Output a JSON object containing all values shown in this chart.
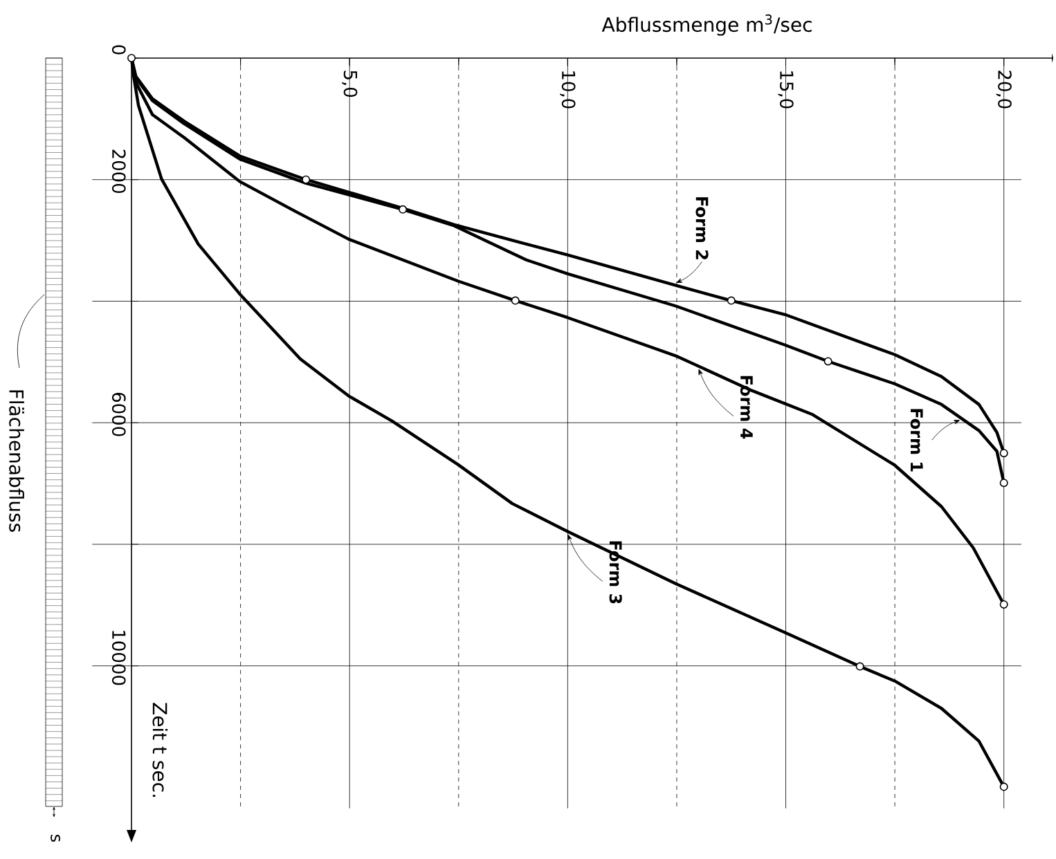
{
  "chart_data": {
    "type": "line",
    "xlabel": "Abflussmenge  m$^{3}$/sec",
    "ylabel": "Zeit t sec.",
    "xlim": [
      0,
      21.1
    ],
    "ylim": [
      12700,
      0
    ],
    "xticks": [
      {
        "value": 2.5,
        "label": null
      },
      {
        "value": 5,
        "label": "5,0"
      },
      {
        "value": 7.5,
        "label": null
      },
      {
        "value": 10,
        "label": "10,0"
      },
      {
        "value": 12.5,
        "label": null
      },
      {
        "value": 15,
        "label": "15,0"
      },
      {
        "value": 17.5,
        "label": null
      },
      {
        "value": 20,
        "label": "20,0"
      }
    ],
    "yticks": [
      0,
      2000,
      {
        "value": 4000,
        "label": null
      },
      6000,
      {
        "value": 8000,
        "label": null
      },
      10000
    ],
    "grid": true,
    "series": [
      {
        "name": "Form 1",
        "color": "#000000",
        "x": [
          0,
          0.1,
          0.48,
          1.21,
          2.48,
          4.0,
          6.22,
          7.4,
          9.05,
          10,
          12.48,
          14.98,
          15.97,
          17.5,
          18.57,
          19.43,
          19.84,
          20
        ],
        "values": [
          0,
          320,
          700,
          1080,
          1660,
          2060,
          2490,
          2760,
          3320,
          3550,
          4080,
          4720,
          4990,
          5360,
          5700,
          6130,
          6470,
          6990
        ]
      },
      {
        "name": "Form 2",
        "color": "#000000",
        "x": [
          0,
          0.1,
          0.48,
          1.21,
          2.48,
          4.0,
          6.22,
          7.4,
          9.05,
          10,
          12.48,
          13.75,
          14.98,
          17.5,
          18.57,
          19.43,
          19.84,
          20
        ],
        "values": [
          0,
          300,
          670,
          1040,
          1610,
          2000,
          2470,
          2740,
          3060,
          3240,
          3740,
          3990,
          4220,
          4880,
          5240,
          5700,
          6160,
          6500
        ]
      },
      {
        "name": "Form 3",
        "color": "#000000",
        "x": [
          0,
          0.05,
          0.16,
          0.69,
          1.53,
          2.48,
          3.87,
          4.98,
          5.97,
          7.49,
          8.73,
          10,
          12.48,
          14.98,
          16.7,
          17.5,
          18.57,
          19.43,
          20
        ],
        "values": [
          0,
          300,
          780,
          1990,
          3060,
          3880,
          4950,
          5560,
          5970,
          6690,
          7330,
          7790,
          8650,
          9450,
          10010,
          10250,
          10700,
          11240,
          11990
        ]
      },
      {
        "name": "Form 4",
        "color": "#000000",
        "x": [
          0,
          0.1,
          0.48,
          1.21,
          2.48,
          3.75,
          4.98,
          7.49,
          8.8,
          10,
          12.48,
          14.22,
          15.6,
          17.5,
          18.57,
          19.3,
          20
        ],
        "values": [
          0,
          400,
          930,
          1310,
          2030,
          2520,
          2980,
          3670,
          3990,
          4270,
          4900,
          5470,
          5860,
          6700,
          7380,
          8060,
          8990
        ]
      },
      {
        "type": "scatter",
        "marker": "circle",
        "color": "#000000",
        "x": [
          0,
          4.0,
          6.22,
          13.75,
          15.97,
          8.8,
          16.7,
          20,
          20,
          20,
          20
        ],
        "values": [
          0,
          2000,
          2490,
          3990,
          4990,
          3990,
          10010,
          6500,
          6990,
          8990,
          11990
        ]
      }
    ],
    "annotations": [
      "Flächenabfluss",
      "s"
    ]
  }
}
